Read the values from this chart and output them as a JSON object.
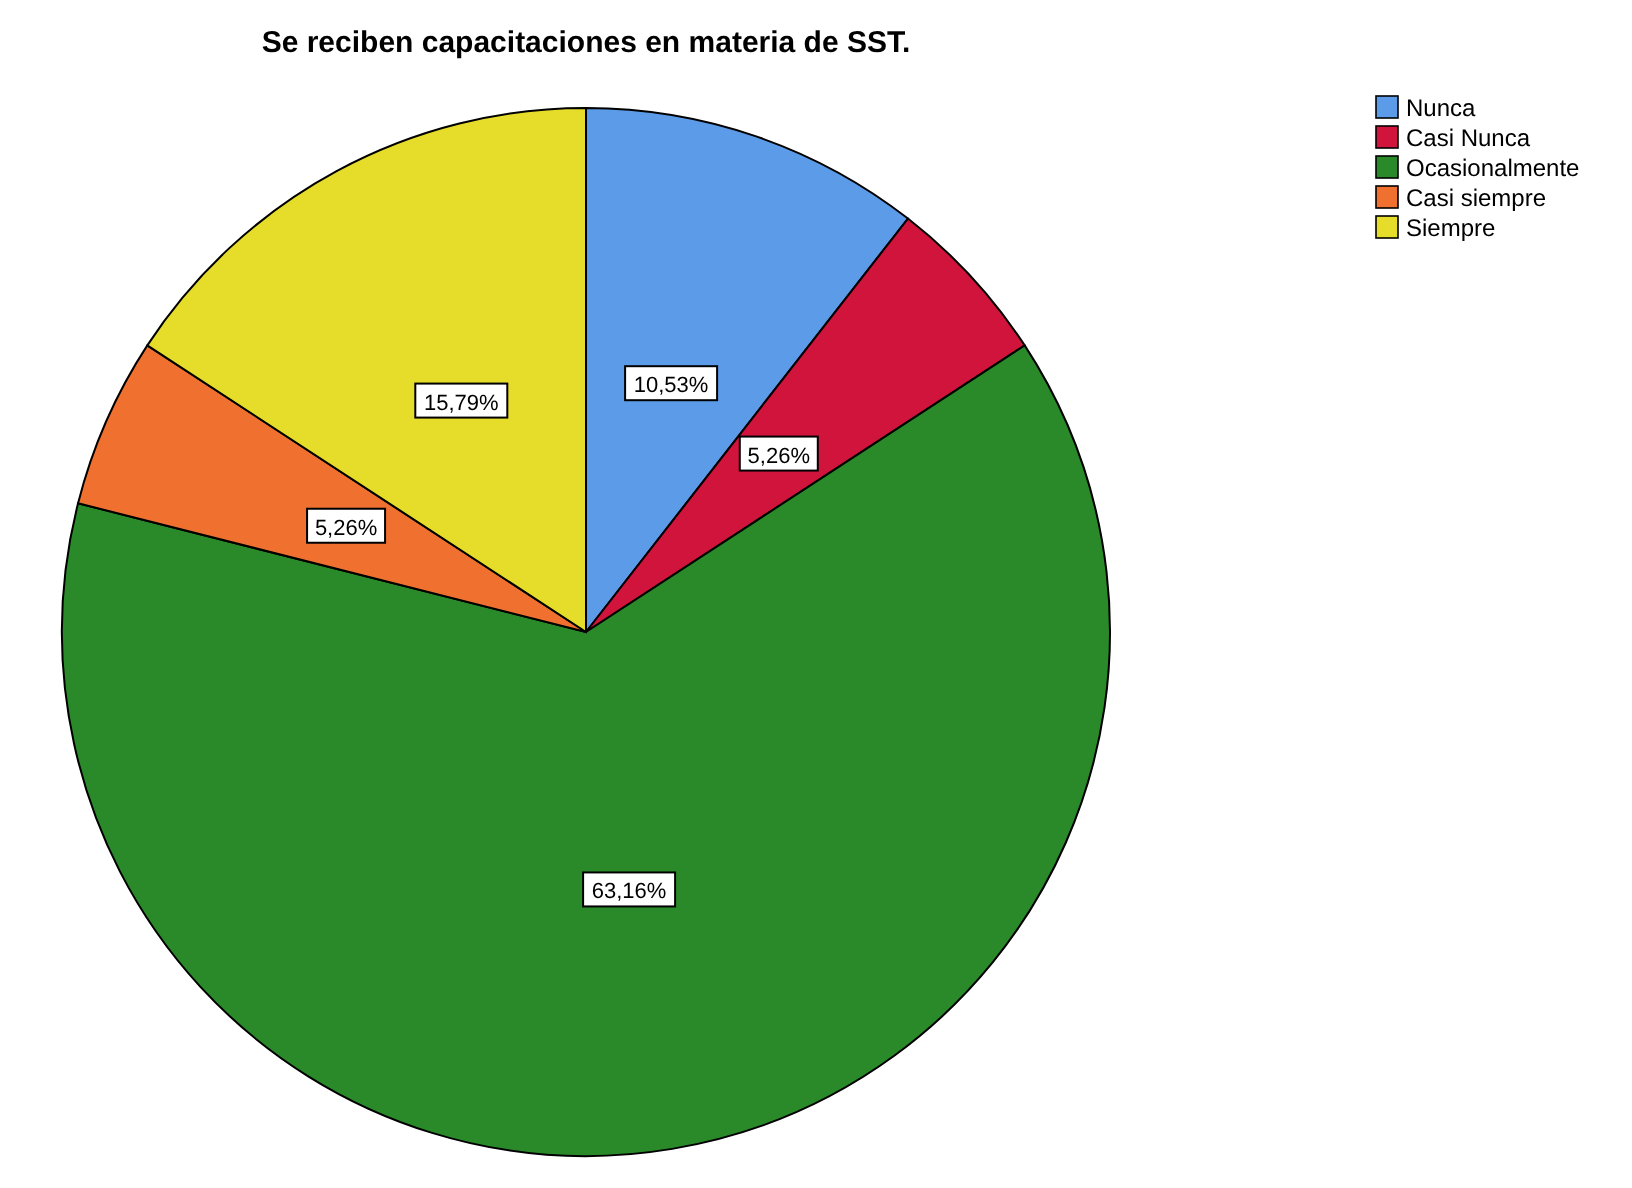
{
  "chart_data": {
    "type": "pie",
    "title": "Se reciben capacitaciones en materia de SST.",
    "categories": [
      "Nunca",
      "Casi Nunca",
      "Ocasionalmente",
      "Casi siempre",
      "Siempre"
    ],
    "values": [
      10.53,
      5.26,
      63.16,
      5.26,
      15.79
    ],
    "value_labels": [
      "10,53%",
      "5,26%",
      "63,16%",
      "5,26%",
      "15,79%"
    ],
    "colors": [
      "#5b9be8",
      "#d0143c",
      "#2a8a2a",
      "#f07030",
      "#e6dc2a"
    ],
    "legend": "top right"
  }
}
